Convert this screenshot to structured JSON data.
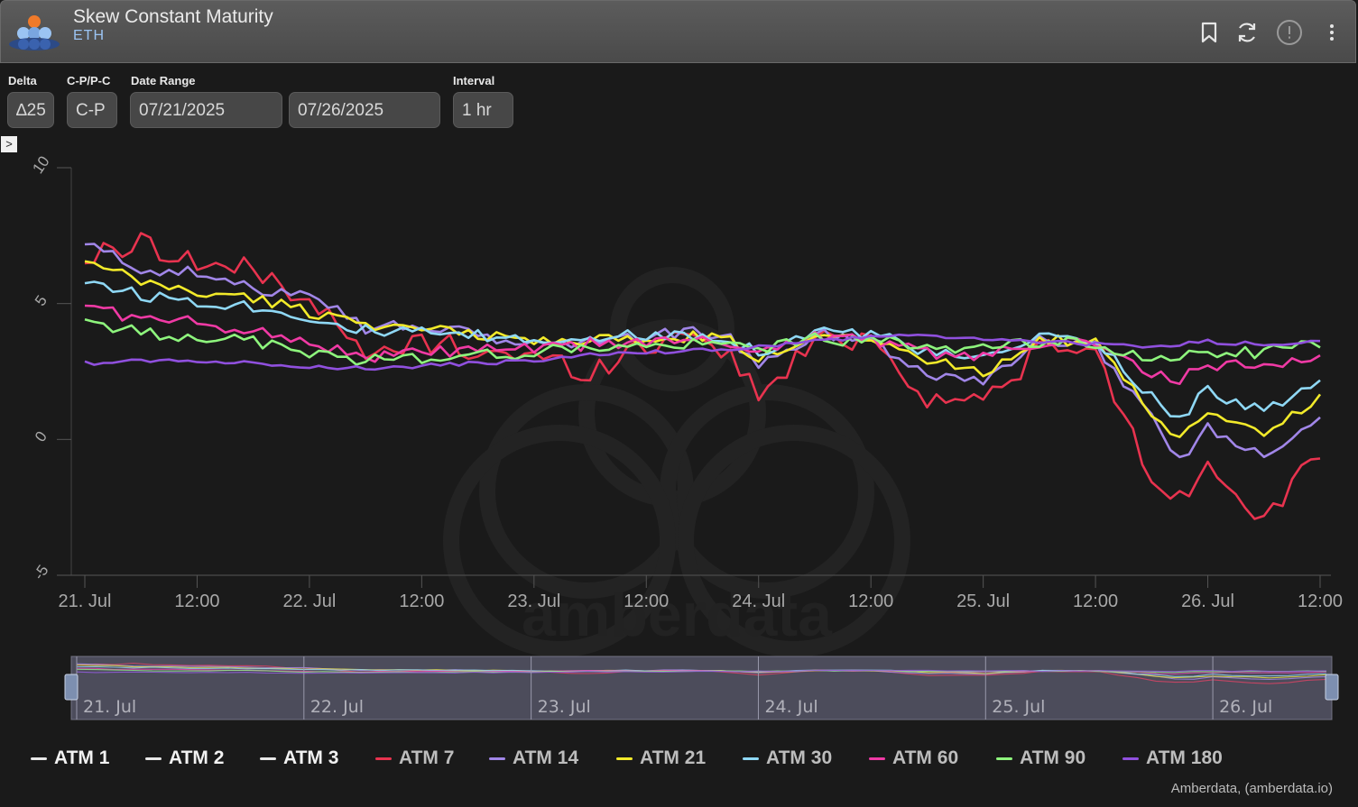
{
  "header": {
    "title": "Skew Constant Maturity",
    "subtitle": "ETH"
  },
  "controls": {
    "delta": {
      "label": "Delta",
      "value": "∆25"
    },
    "cp": {
      "label": "C-P/P-C",
      "value": "C-P"
    },
    "date_range": {
      "label": "Date Range",
      "start": "07/21/2025",
      "end": "07/26/2025"
    },
    "interval": {
      "label": "Interval",
      "value": "1 hr"
    }
  },
  "expander_glyph": ">",
  "watermark": "amberdata",
  "credit": "Amberdata, (amberdata.io)",
  "colors": {
    "background": "#1a1a1a",
    "header": "#505050",
    "axis_text": "#a8a8a8",
    "grid_line": "#444444"
  },
  "chart_data": {
    "type": "line",
    "x_start": "2025-07-21 00:00",
    "x_end": "2025-07-26 12:00",
    "x_ticks": [
      "21. Jul",
      "12:00",
      "22. Jul",
      "12:00",
      "23. Jul",
      "12:00",
      "24. Jul",
      "12:00",
      "25. Jul",
      "12:00",
      "26. Jul",
      "12:00"
    ],
    "y_ticks": [
      "10",
      "5",
      "0",
      "-5"
    ],
    "ylim": [
      -5,
      10
    ],
    "navigator_labels": [
      "21. Jul",
      "22. Jul",
      "23. Jul",
      "24. Jul",
      "25. Jul",
      "26. Jul"
    ],
    "x_keys": [
      0,
      6,
      12,
      18,
      24,
      30,
      36,
      42,
      48,
      54,
      60,
      66,
      69,
      72,
      78,
      84,
      90,
      96,
      102,
      108,
      114,
      117,
      120,
      126,
      132
    ],
    "series": [
      {
        "name": "ATM 1",
        "color": "#e8e8e8",
        "visible": false,
        "values": []
      },
      {
        "name": "ATM 2",
        "color": "#e8e8e8",
        "visible": false,
        "values": []
      },
      {
        "name": "ATM 3",
        "color": "#e8e8e8",
        "visible": false,
        "values": []
      },
      {
        "name": "ATM 7",
        "color": "#e8334f",
        "visible": true,
        "values": [
          6.6,
          7.3,
          6.5,
          6.2,
          5.2,
          3.0,
          3.6,
          3.3,
          3.0,
          2.5,
          3.5,
          4.0,
          3.0,
          1.6,
          3.6,
          3.8,
          1.5,
          1.4,
          3.3,
          3.2,
          -1.5,
          -2.1,
          -1.0,
          -2.8,
          -0.7
        ]
      },
      {
        "name": "ATM 14",
        "color": "#a186e8",
        "visible": true,
        "values": [
          7.2,
          6.3,
          6.1,
          5.5,
          5.5,
          4.1,
          4.2,
          3.8,
          3.5,
          3.6,
          3.8,
          4.0,
          3.7,
          2.6,
          3.9,
          3.7,
          2.4,
          2.2,
          3.6,
          3.5,
          0.8,
          -0.8,
          0.4,
          -0.6,
          1.0
        ]
      },
      {
        "name": "ATM 21",
        "color": "#f2ea2a",
        "visible": true,
        "values": [
          6.5,
          5.8,
          5.4,
          5.2,
          4.7,
          4.3,
          4.0,
          3.9,
          3.6,
          3.7,
          3.6,
          3.8,
          3.6,
          2.9,
          3.9,
          3.8,
          2.9,
          2.5,
          3.7,
          3.5,
          1.0,
          -0.1,
          1.0,
          0.2,
          1.6
        ]
      },
      {
        "name": "ATM 30",
        "color": "#8fd8f5",
        "visible": true,
        "values": [
          5.9,
          5.3,
          5.1,
          4.9,
          4.5,
          4.0,
          3.9,
          3.8,
          3.6,
          3.8,
          3.8,
          3.9,
          3.7,
          3.2,
          4.0,
          3.9,
          3.2,
          2.9,
          3.8,
          3.6,
          1.6,
          0.8,
          1.8,
          1.0,
          2.1
        ]
      },
      {
        "name": "ATM 60",
        "color": "#f03aa5",
        "visible": true,
        "values": [
          5.0,
          4.4,
          4.3,
          4.0,
          3.6,
          3.0,
          3.2,
          3.3,
          3.3,
          3.5,
          3.6,
          3.6,
          3.5,
          3.3,
          3.8,
          3.7,
          3.2,
          3.0,
          3.6,
          3.5,
          2.4,
          2.2,
          2.7,
          2.7,
          3.0
        ]
      },
      {
        "name": "ATM 90",
        "color": "#8ef57d",
        "visible": true,
        "values": [
          4.4,
          3.9,
          3.8,
          3.6,
          3.2,
          2.9,
          3.0,
          3.1,
          3.2,
          3.4,
          3.4,
          3.5,
          3.4,
          3.4,
          3.7,
          3.6,
          3.5,
          3.3,
          3.6,
          3.5,
          2.9,
          3.1,
          3.2,
          3.2,
          3.5
        ]
      },
      {
        "name": "ATM 180",
        "color": "#9050de",
        "visible": true,
        "values": [
          2.8,
          2.9,
          2.9,
          2.8,
          2.7,
          2.6,
          2.7,
          2.8,
          2.9,
          3.1,
          3.2,
          3.3,
          3.3,
          3.4,
          3.6,
          3.8,
          3.8,
          3.7,
          3.6,
          3.5,
          3.4,
          3.5,
          3.6,
          3.5,
          3.6
        ]
      }
    ]
  }
}
